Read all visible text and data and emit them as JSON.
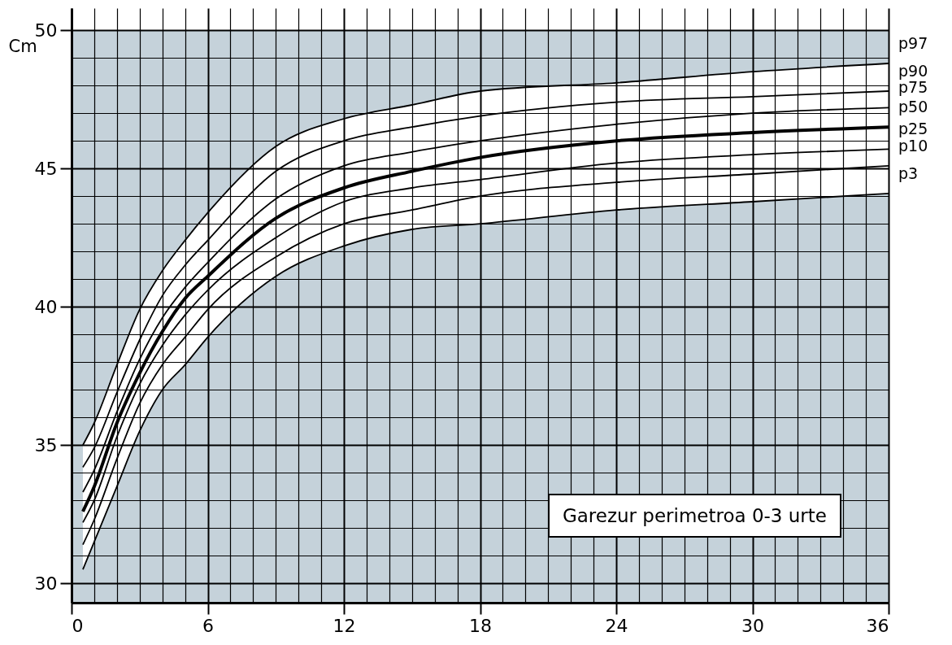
{
  "chart_data": {
    "type": "line",
    "ylabel": "Cm",
    "x": [
      0.5,
      1,
      2,
      3,
      4,
      5,
      6,
      9,
      12,
      15,
      18,
      24,
      30,
      36
    ],
    "series": [
      {
        "name": "p97",
        "color": "#000000",
        "values": [
          35.0,
          35.8,
          37.9,
          39.9,
          41.3,
          42.4,
          43.4,
          45.8,
          46.8,
          47.3,
          47.8,
          48.1,
          48.5,
          48.8
        ]
      },
      {
        "name": "p90",
        "color": "#000000",
        "values": [
          34.2,
          34.9,
          36.9,
          38.8,
          40.4,
          41.5,
          42.4,
          44.9,
          46.0,
          46.5,
          46.9,
          47.4,
          47.6,
          47.8
        ]
      },
      {
        "name": "p75",
        "color": "#000000",
        "values": [
          33.3,
          34.1,
          36.2,
          38.1,
          39.6,
          40.7,
          41.6,
          43.9,
          45.1,
          45.6,
          46.0,
          46.6,
          47.0,
          47.2
        ]
      },
      {
        "name": "p50",
        "color": "#000000",
        "values": [
          32.6,
          33.5,
          35.8,
          37.6,
          39.1,
          40.3,
          41.1,
          43.2,
          44.3,
          44.9,
          45.4,
          46.0,
          46.3,
          46.5
        ],
        "lower": [
          30.5,
          31.5,
          33.5,
          35.5,
          37.0,
          37.9,
          38.9,
          41.1,
          42.2,
          42.8,
          43.0,
          43.5,
          43.8,
          44.1
        ],
        "upper": [
          35.0,
          35.8,
          37.9,
          39.9,
          41.3,
          42.4,
          43.4,
          45.8,
          46.8,
          47.3,
          47.8,
          48.1,
          48.5,
          48.8
        ]
      },
      {
        "name": "p25",
        "color": "#000000",
        "values": [
          32.2,
          33.0,
          35.3,
          37.2,
          38.6,
          39.7,
          40.6,
          42.5,
          43.8,
          44.3,
          44.6,
          45.2,
          45.5,
          45.7
        ]
      },
      {
        "name": "p10",
        "color": "#000000",
        "values": [
          31.4,
          32.3,
          34.5,
          36.5,
          37.9,
          38.9,
          39.9,
          41.8,
          43.0,
          43.5,
          44.0,
          44.5,
          44.8,
          45.1
        ]
      },
      {
        "name": "p3",
        "color": "#000000",
        "values": [
          30.5,
          31.5,
          33.5,
          35.5,
          37.0,
          37.9,
          38.9,
          41.1,
          42.2,
          42.8,
          43.0,
          43.5,
          43.8,
          44.1
        ]
      }
    ],
    "xlim": [
      0,
      36
    ],
    "ylim": [
      29.3,
      50.8
    ],
    "xticks": [
      0,
      {
        "value": 1,
        "label": null
      },
      {
        "value": 2,
        "label": null
      },
      {
        "value": 3,
        "label": null
      },
      {
        "value": 4,
        "label": null
      },
      {
        "value": 5,
        "label": null
      },
      6,
      {
        "value": 7,
        "label": null
      },
      {
        "value": 8,
        "label": null
      },
      {
        "value": 9,
        "label": null
      },
      {
        "value": 10,
        "label": null
      },
      {
        "value": 11,
        "label": null
      },
      12,
      {
        "value": 13,
        "label": null
      },
      {
        "value": 14,
        "label": null
      },
      {
        "value": 15,
        "label": null
      },
      {
        "value": 16,
        "label": null
      },
      {
        "value": 17,
        "label": null
      },
      18,
      {
        "value": 19,
        "label": null
      },
      {
        "value": 20,
        "label": null
      },
      {
        "value": 21,
        "label": null
      },
      {
        "value": 22,
        "label": null
      },
      {
        "value": 23,
        "label": null
      },
      24,
      {
        "value": 25,
        "label": null
      },
      {
        "value": 26,
        "label": null
      },
      {
        "value": 27,
        "label": null
      },
      {
        "value": 28,
        "label": null
      },
      {
        "value": 29,
        "label": null
      },
      30,
      {
        "value": 31,
        "label": null
      },
      {
        "value": 32,
        "label": null
      },
      {
        "value": 33,
        "label": null
      },
      {
        "value": 34,
        "label": null
      },
      {
        "value": 35,
        "label": null
      },
      36
    ],
    "yticks": [
      30,
      {
        "value": 31,
        "label": null
      },
      {
        "value": 32,
        "label": null
      },
      {
        "value": 33,
        "label": null
      },
      {
        "value": 34,
        "label": null
      },
      35,
      {
        "value": 36,
        "label": null
      },
      {
        "value": 37,
        "label": null
      },
      {
        "value": 38,
        "label": null
      },
      {
        "value": 39,
        "label": null
      },
      40,
      {
        "value": 41,
        "label": null
      },
      {
        "value": 42,
        "label": null
      },
      {
        "value": 43,
        "label": null
      },
      {
        "value": 44,
        "label": null
      },
      45,
      {
        "value": 46,
        "label": null
      },
      {
        "value": 47,
        "label": null
      },
      {
        "value": 48,
        "label": null
      },
      {
        "value": 49,
        "label": null
      },
      50
    ],
    "bands": [
      {
        "axis": "y",
        "from": 29.3,
        "to": 50,
        "color": "#c5d2da"
      }
    ],
    "grid": true,
    "marker": "none",
    "line_style": "solid",
    "annotations": [
      "Garezur perimetroa 0-3 urte"
    ]
  }
}
